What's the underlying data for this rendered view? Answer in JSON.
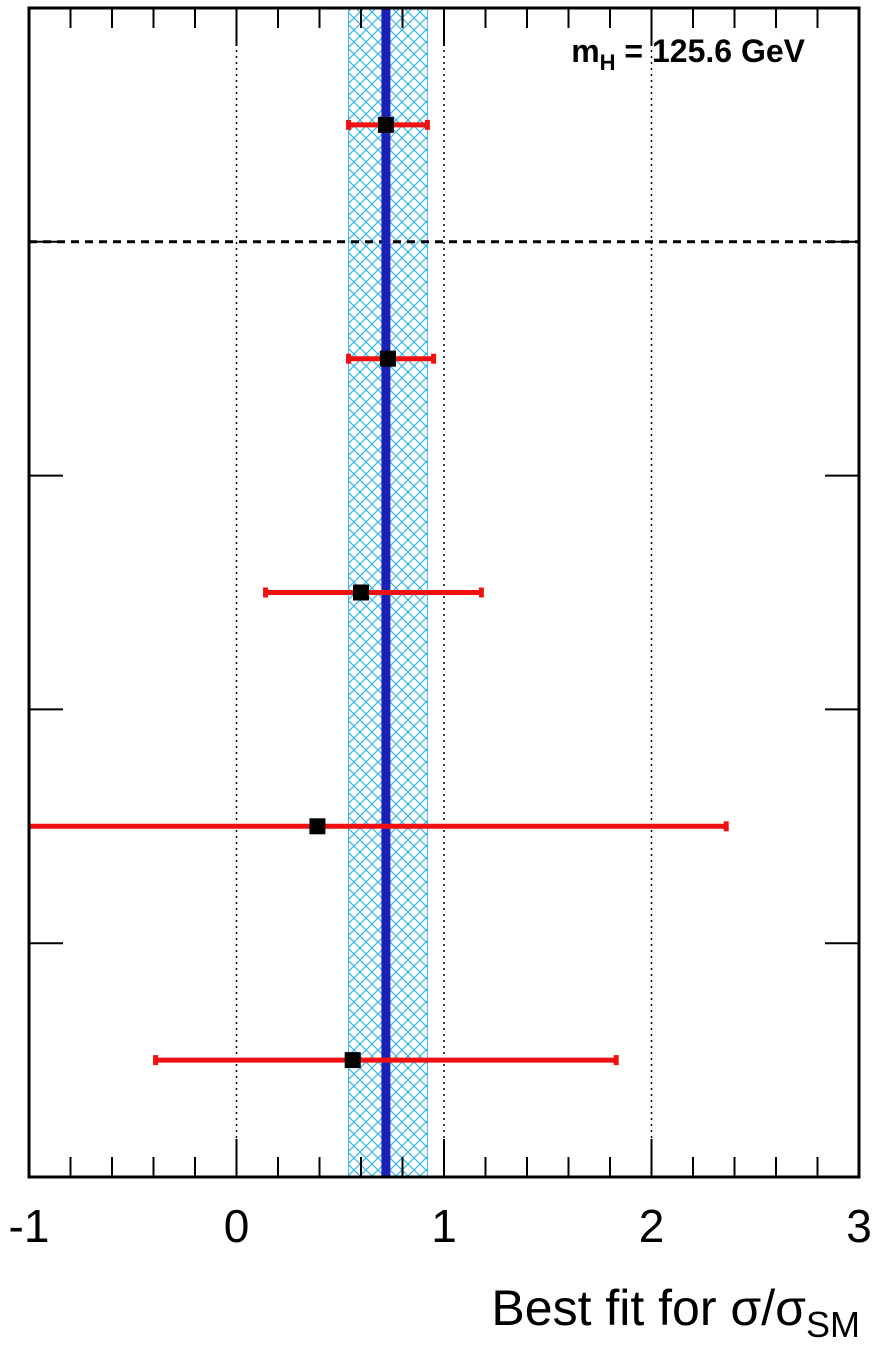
{
  "chart_data": {
    "type": "scatter",
    "orientation": "horizontal-errorbars",
    "title": "",
    "xlabel": {
      "main": "Best fit for σ/σ",
      "subscript": "SM"
    },
    "ylabel": "",
    "xlim": [
      -1,
      3
    ],
    "x_ticks": [
      -1,
      0,
      1,
      2,
      3
    ],
    "x_tick_labels": [
      "-1",
      "0",
      "1",
      "2",
      "3"
    ],
    "grid": "vertical dotted lines at 0, 1, 2",
    "annotation": {
      "text_main": "m",
      "text_sub": "H",
      "text_rest": " = 125.6 GeV"
    },
    "combined": {
      "value": 0.72,
      "band_low": 0.54,
      "band_high": 0.92
    },
    "points": [
      {
        "value": 0.72,
        "err_low": 0.54,
        "err_high": 0.92
      },
      {
        "value": 0.73,
        "err_low": 0.54,
        "err_high": 0.95
      },
      {
        "value": 0.6,
        "err_low": 0.14,
        "err_high": 1.18
      },
      {
        "value": 0.39,
        "err_low": -1.0,
        "err_high": 2.36
      },
      {
        "value": 0.56,
        "err_low": -0.39,
        "err_high": 1.83
      }
    ],
    "separator_after_point": 1,
    "colors": {
      "band": "#39b5e6",
      "combined_line": "#1b21b8",
      "error_bar": "#f20f0f",
      "marker": "#000000"
    }
  }
}
